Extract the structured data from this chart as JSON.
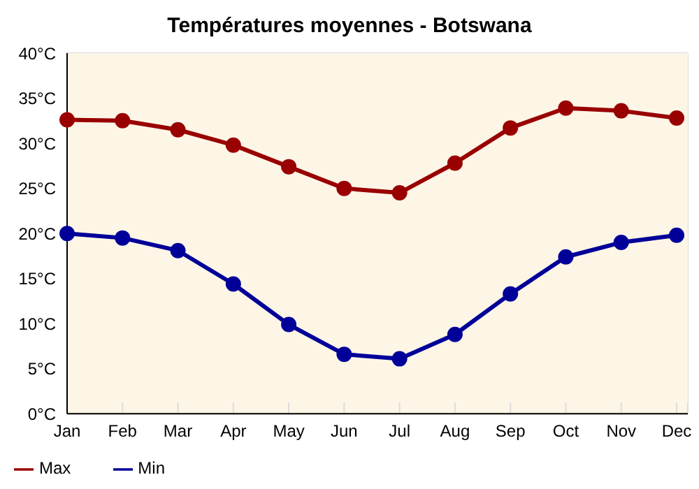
{
  "chart_data": {
    "type": "line",
    "title": "Températures moyennes - Botswana",
    "categories": [
      "Jan",
      "Feb",
      "Mar",
      "Apr",
      "May",
      "Jun",
      "Jul",
      "Aug",
      "Sep",
      "Oct",
      "Nov",
      "Dec"
    ],
    "series": [
      {
        "name": "Min",
        "color": "#000099",
        "values": [
          20.0,
          19.5,
          18.1,
          14.4,
          9.9,
          6.6,
          6.1,
          8.8,
          13.3,
          17.4,
          19.0,
          19.8
        ]
      },
      {
        "name": "Max",
        "color": "#990000",
        "values": [
          32.6,
          32.5,
          31.5,
          29.8,
          27.4,
          25.0,
          24.5,
          27.8,
          31.7,
          33.9,
          33.6,
          32.8
        ]
      }
    ],
    "ylim": [
      0,
      40
    ],
    "yticks": [
      {
        "value": 0,
        "label": "0°C"
      },
      {
        "value": 5,
        "label": "5°C"
      },
      {
        "value": 10,
        "label": "10°C"
      },
      {
        "value": 15,
        "label": "15°C"
      },
      {
        "value": 20,
        "label": "20°C"
      },
      {
        "value": 25,
        "label": "25°C"
      },
      {
        "value": 30,
        "label": "30°C"
      },
      {
        "value": 35,
        "label": "35°C"
      },
      {
        "value": 40,
        "label": "40°C"
      }
    ],
    "grid": true,
    "legend": "bottom left",
    "marker": "circle",
    "line_style": "solid"
  }
}
